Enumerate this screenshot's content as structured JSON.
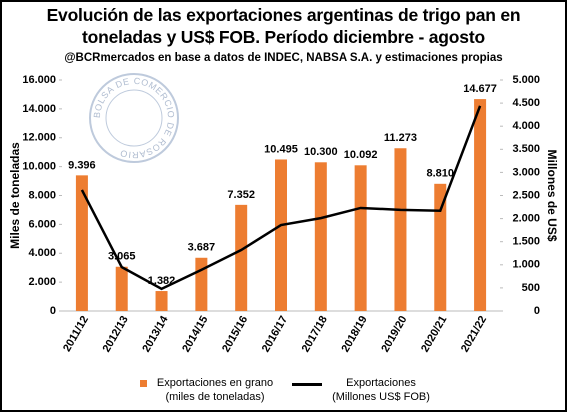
{
  "chart_data": {
    "type": "bar-line",
    "title": "Evolución de las exportaciones argentinas de trigo pan en toneladas y US$ FOB. Período diciembre - agosto",
    "subtitle": "@BCRmercados en base a datos de INDEC, NABSA S.A. y estimaciones propias",
    "watermark": "BOLSA DE COMERCIO DE ROSARIO",
    "y_label": "Miles de toneladas",
    "y2_label": "Millones de US$",
    "categories": [
      "2011/12",
      "2012/13",
      "2013/14",
      "2014/15",
      "2015/16",
      "2016/17",
      "2017/18",
      "2018/19",
      "2019/20",
      "2020/21",
      "2021/22"
    ],
    "series": [
      {
        "name": "Exportaciones en grano (miles de toneladas)",
        "type": "bar",
        "color": "#ed7d31",
        "values": [
          9396,
          3065,
          1382,
          3687,
          7352,
          10495,
          10300,
          10092,
          11273,
          8810,
          14677
        ],
        "value_labels": [
          "9.396",
          "3.065",
          "1.382",
          "3.687",
          "7.352",
          "10.495",
          "10.300",
          "10.092",
          "11.273",
          "8.810",
          "14.677"
        ]
      },
      {
        "name": "Exportaciones (Millones US$ FOB)",
        "type": "line",
        "color": "#000000",
        "axis": "y2",
        "values": [
          2620,
          950,
          480,
          890,
          1320,
          1860,
          2010,
          2230,
          2190,
          2170,
          4440
        ]
      }
    ],
    "ylim": [
      0,
      16000
    ],
    "yticks": [
      0,
      {
        "value": 2000,
        "label": "2.000"
      },
      {
        "value": 4000,
        "label": "4.000"
      },
      {
        "value": 6000,
        "label": "6.000"
      },
      {
        "value": 8000,
        "label": "8.000"
      },
      {
        "value": 10000,
        "label": "10.000"
      },
      {
        "value": 12000,
        "label": "12.000"
      },
      {
        "value": 14000,
        "label": "14.000"
      },
      {
        "value": 16000,
        "label": "16.000"
      }
    ],
    "y2lim": [
      0,
      5000
    ],
    "y2ticks": [
      0,
      500,
      {
        "value": 1000,
        "label": "1.000"
      },
      {
        "value": 1500,
        "label": "1.500"
      },
      {
        "value": 2000,
        "label": "2.000"
      },
      {
        "value": 2500,
        "label": "2.500"
      },
      {
        "value": 3000,
        "label": "3.000"
      },
      {
        "value": 3500,
        "label": "3.500"
      },
      {
        "value": 4000,
        "label": "4.000"
      },
      {
        "value": 4500,
        "label": "4.500"
      },
      {
        "value": 5000,
        "label": "5.000"
      }
    ],
    "grid": false
  }
}
